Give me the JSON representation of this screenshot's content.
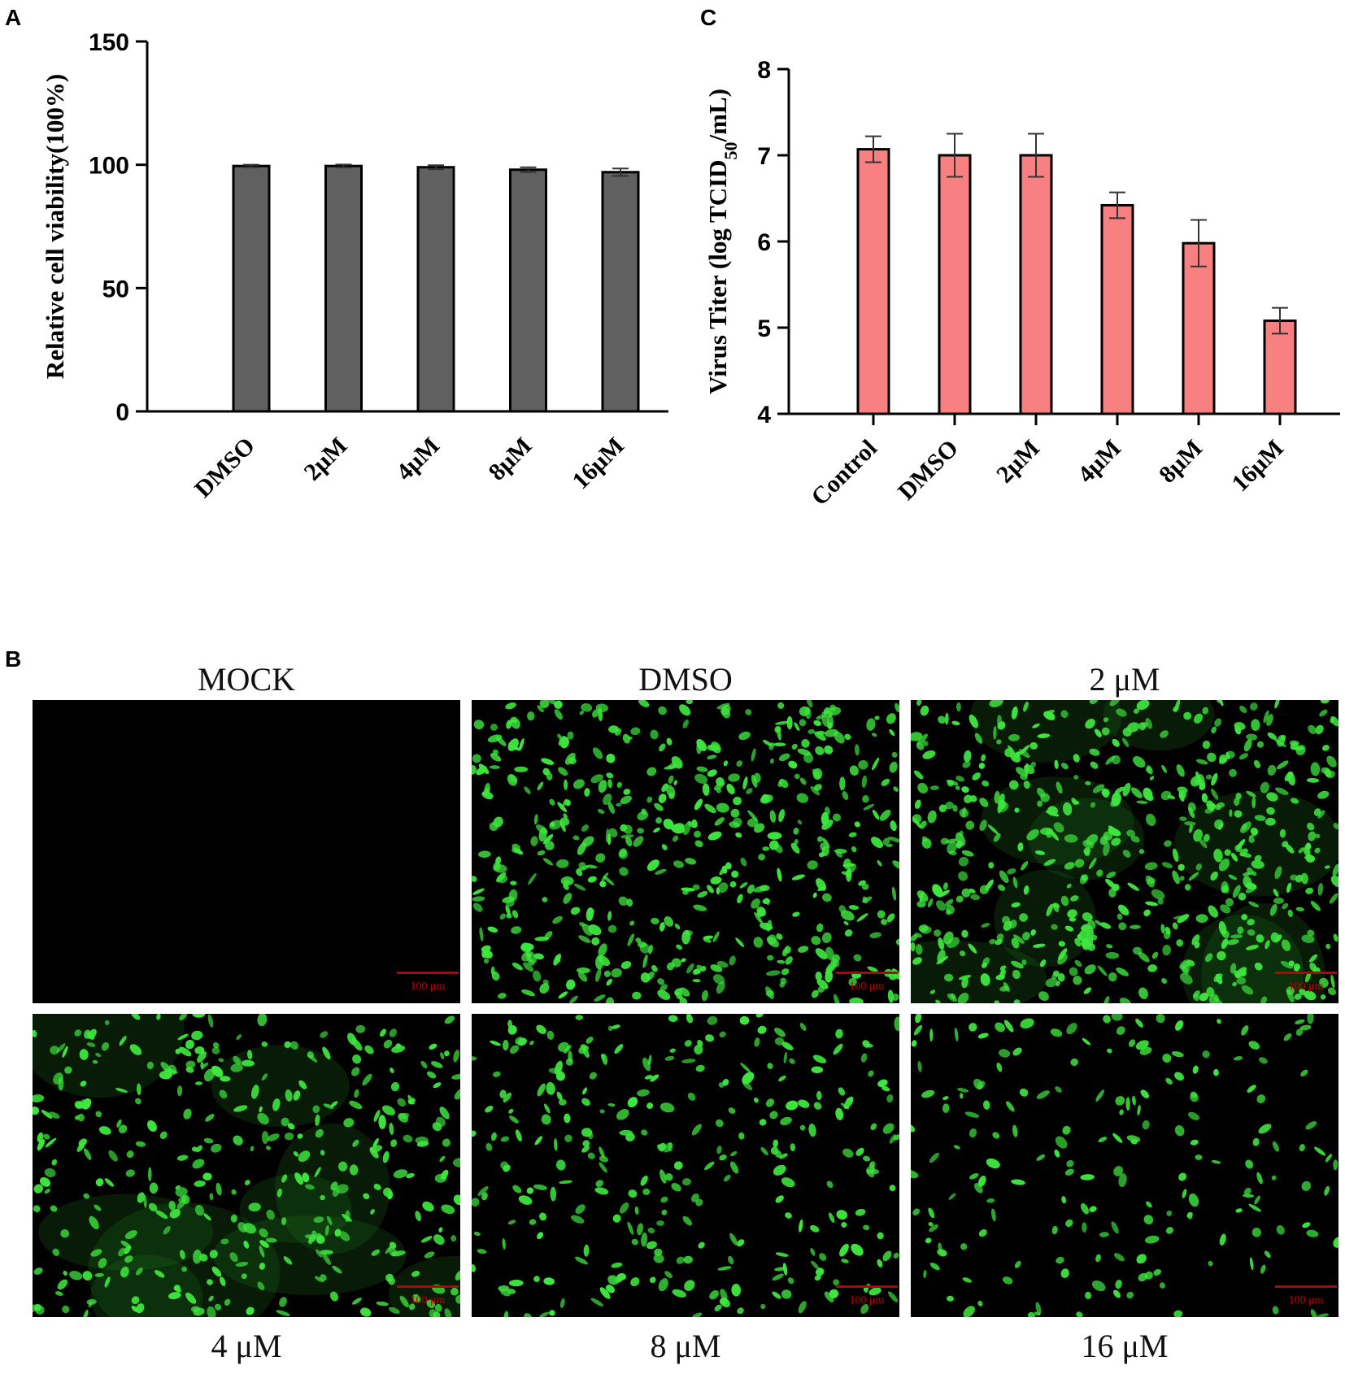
{
  "panels": {
    "a": {
      "letter": "A"
    },
    "b": {
      "letter": "B"
    },
    "c": {
      "letter": "C"
    }
  },
  "chart_data": [
    {
      "id": "A",
      "type": "bar",
      "categories": [
        "DMSO",
        "2μM",
        "4μM",
        "8μM",
        "16μM"
      ],
      "values": [
        99.5,
        99.5,
        99.0,
        98.0,
        97.0
      ],
      "errors": [
        0.5,
        0.6,
        0.8,
        1.0,
        1.5
      ],
      "ylabel": "Relative cell viability(100%)",
      "xlabel": "",
      "ylim": [
        0,
        150
      ],
      "yticks": [
        0,
        50,
        100,
        150
      ],
      "bar_color": "#606060",
      "grid": false
    },
    {
      "id": "C",
      "type": "bar",
      "categories": [
        "Control",
        "DMSO",
        "2μM",
        "4μM",
        "8μM",
        "16μM"
      ],
      "values": [
        7.07,
        7.0,
        7.0,
        6.42,
        5.98,
        5.08
      ],
      "errors": [
        0.15,
        0.25,
        0.25,
        0.15,
        0.27,
        0.15
      ],
      "ylabel_prefix": "Virus Titer (log TCID",
      "ylabel_sub": "50",
      "ylabel_suffix": "/mL)",
      "xlabel": "",
      "ylim": [
        4,
        8
      ],
      "yticks": [
        4,
        5,
        6,
        7,
        8
      ],
      "bar_color": "#f98080",
      "grid": false
    }
  ],
  "micrographs": [
    {
      "title": "MOCK",
      "scale": "100 μm",
      "density": 0,
      "haze": false
    },
    {
      "title": "DMSO",
      "scale": "100 μm",
      "density": 520,
      "haze": false
    },
    {
      "title": "2 μM",
      "scale": "100 μm",
      "density": 560,
      "haze": true
    },
    {
      "title": "4 μM",
      "scale": "100 μm",
      "density": 360,
      "haze": true
    },
    {
      "title": "8 μM",
      "scale": "100 μm",
      "density": 300,
      "haze": false
    },
    {
      "title": "16 μM",
      "scale": "100 μm",
      "density": 190,
      "haze": false
    }
  ],
  "colors": {
    "fluorescence": "#3ee63e",
    "scalebar": "#c00000"
  }
}
